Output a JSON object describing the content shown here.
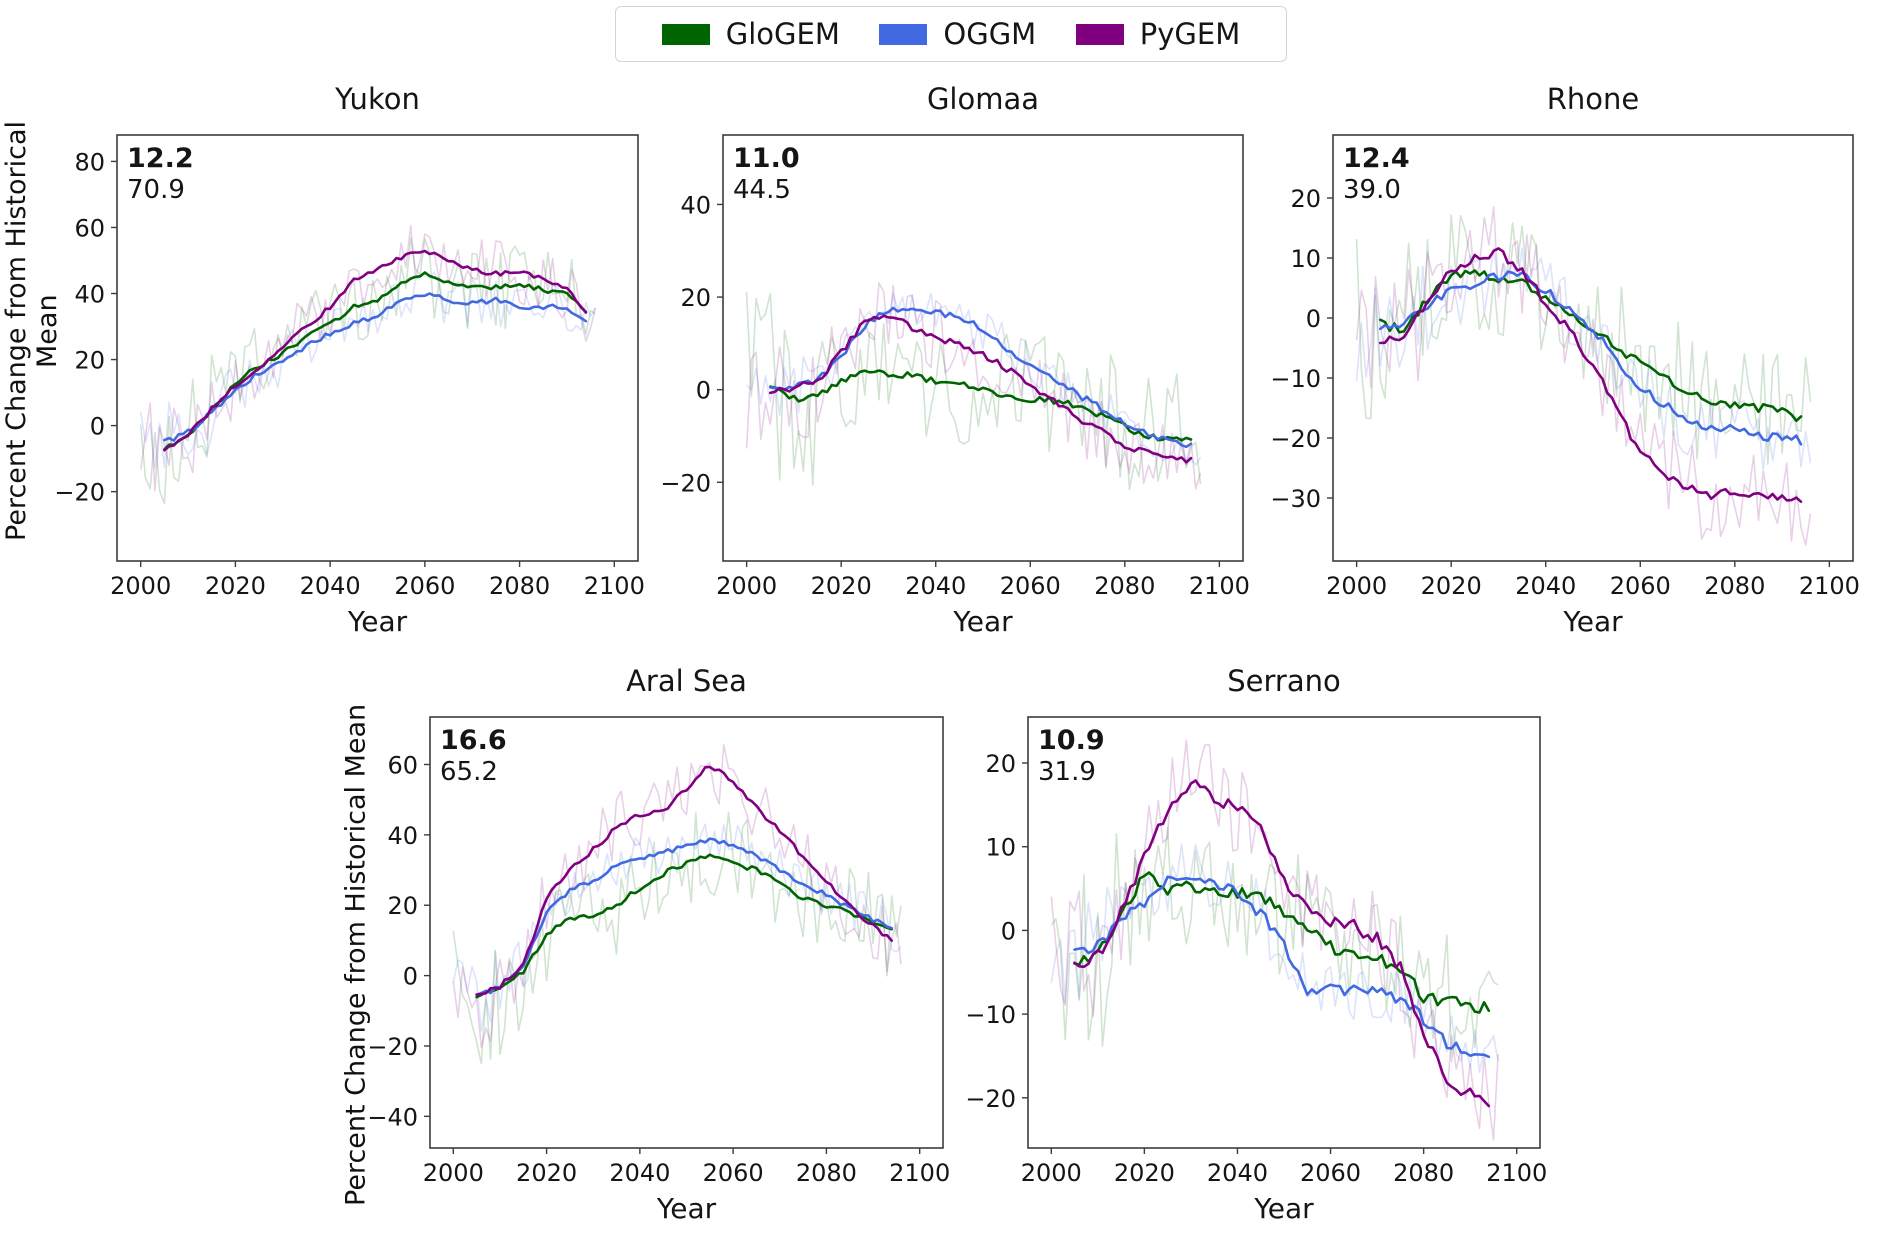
{
  "chart_data": {
    "type": "line",
    "ylabel": "Percent Change from Historical Mean",
    "xlabel": "Year",
    "legend": [
      {
        "name": "GloGEM",
        "color": "#006400"
      },
      {
        "name": "OGGM",
        "color": "#4169e1"
      },
      {
        "name": "PyGEM",
        "color": "#800080"
      }
    ],
    "faint_line_note": "thin transparent lines are annual values; bold lines are smoothed means",
    "x_years": [
      2005,
      2010,
      2015,
      2020,
      2025,
      2030,
      2035,
      2040,
      2045,
      2050,
      2055,
      2060,
      2065,
      2070,
      2075,
      2080,
      2085,
      2090,
      2095
    ],
    "xticks": [
      2000,
      2020,
      2040,
      2060,
      2080,
      2100
    ],
    "xlim": [
      1995,
      2105
    ],
    "panels": [
      {
        "title": "Yukon",
        "annotation_bold": "12.2",
        "annotation_secondary": "70.9",
        "ylim": [
          -41,
          88
        ],
        "yticks": [
          -20,
          0,
          20,
          40,
          60,
          80
        ],
        "series": {
          "GloGEM": [
            -7,
            -3,
            5,
            13,
            18,
            22,
            27,
            31,
            36,
            38,
            43,
            46,
            43,
            42,
            42,
            43,
            41,
            40,
            34
          ],
          "OGGM": [
            -5,
            -2,
            4,
            11,
            16,
            20,
            24,
            28,
            31,
            33,
            38,
            40,
            38,
            37,
            38,
            36,
            36,
            36,
            30
          ],
          "PyGEM": [
            -7,
            -3,
            5,
            12,
            17,
            24,
            30,
            36,
            44,
            47,
            51,
            53,
            50,
            47,
            46,
            47,
            44,
            42,
            32
          ]
        }
      },
      {
        "title": "Glomaa",
        "annotation_bold": "11.0",
        "annotation_secondary": "44.5",
        "ylim": [
          -37,
          55
        ],
        "yticks": [
          -20,
          0,
          20,
          40
        ],
        "series": {
          "GloGEM": [
            1,
            -2,
            -1,
            2,
            4,
            3.5,
            3,
            2,
            1,
            0,
            -1,
            -2,
            -2.5,
            -3.5,
            -5.5,
            -8,
            -10,
            -10.5,
            -10.5
          ],
          "OGGM": [
            0,
            1,
            2,
            7,
            14,
            17,
            17.5,
            17,
            15.5,
            13,
            9,
            5,
            2,
            -1,
            -4,
            -7,
            -10,
            -11.5,
            -12
          ],
          "PyGEM": [
            -1,
            0.5,
            2,
            8,
            15,
            16,
            13.5,
            11.5,
            9.5,
            7.5,
            4.5,
            1,
            -2.5,
            -6,
            -9,
            -12,
            -13.5,
            -15,
            -15
          ]
        }
      },
      {
        "title": "Rhone",
        "annotation_bold": "12.4",
        "annotation_secondary": "39.0",
        "ylim": [
          -40.5,
          30.5
        ],
        "yticks": [
          -30,
          -20,
          -10,
          0,
          10,
          20
        ],
        "series": {
          "GloGEM": [
            -1,
            -2,
            3,
            7,
            7.5,
            6.5,
            6,
            3,
            1,
            -2,
            -5,
            -7.5,
            -10,
            -12.5,
            -14,
            -14.5,
            -15,
            -15.5,
            -17
          ],
          "OGGM": [
            -2,
            -1,
            2,
            4.5,
            5.5,
            7,
            7.5,
            4.5,
            1.5,
            -2,
            -7,
            -11.5,
            -14.5,
            -17,
            -18.5,
            -18,
            -19.5,
            -20,
            -20.5
          ],
          "PyGEM": [
            -4,
            -3.5,
            3,
            8,
            10,
            11,
            8,
            2.5,
            -2,
            -8,
            -15,
            -22.5,
            -26,
            -28,
            -29.5,
            -29,
            -29.5,
            -30,
            -30.5
          ]
        }
      },
      {
        "title": "Aral Sea",
        "annotation_bold": "16.6",
        "annotation_secondary": "65.2",
        "ylim": [
          -49,
          73.5
        ],
        "yticks": [
          -40,
          -20,
          0,
          20,
          40,
          60
        ],
        "series": {
          "GloGEM": [
            -6,
            -4,
            1,
            12,
            16,
            17,
            20,
            25,
            29,
            32,
            34,
            32,
            30,
            26,
            22,
            20,
            18,
            15,
            13
          ],
          "OGGM": [
            -6,
            -3,
            3,
            18,
            24,
            27,
            31,
            33,
            35,
            37,
            38.5,
            37,
            34,
            30,
            26,
            23,
            19,
            16,
            13.5
          ],
          "PyGEM": [
            -6,
            -3,
            3,
            22,
            30,
            36,
            42,
            46,
            47,
            53,
            60,
            55,
            48,
            41,
            34,
            27,
            20,
            14,
            9
          ]
        }
      },
      {
        "title": "Serrano",
        "annotation_bold": "10.9",
        "annotation_secondary": "31.9",
        "ylim": [
          -26,
          25.5
        ],
        "yticks": [
          -20,
          -10,
          0,
          10,
          20
        ],
        "series": {
          "GloGEM": [
            -4,
            -3,
            2,
            6.5,
            5,
            5.5,
            4.5,
            4.5,
            4,
            2,
            0.5,
            -2,
            -3,
            -3.5,
            -4.5,
            -8,
            -8.5,
            -9,
            -9.5
          ],
          "OGGM": [
            -3,
            -2,
            1,
            3.5,
            6,
            6.5,
            6,
            4.5,
            2,
            -2,
            -7,
            -7,
            -7,
            -7,
            -8.5,
            -10.5,
            -13.5,
            -14.5,
            -15.5
          ],
          "PyGEM": [
            -4,
            -3,
            2,
            9,
            14.5,
            17.5,
            16,
            14.5,
            12,
            6,
            2.5,
            1,
            0.5,
            -1,
            -4.5,
            -12.5,
            -18,
            -19.5,
            -20.5
          ]
        }
      }
    ]
  }
}
